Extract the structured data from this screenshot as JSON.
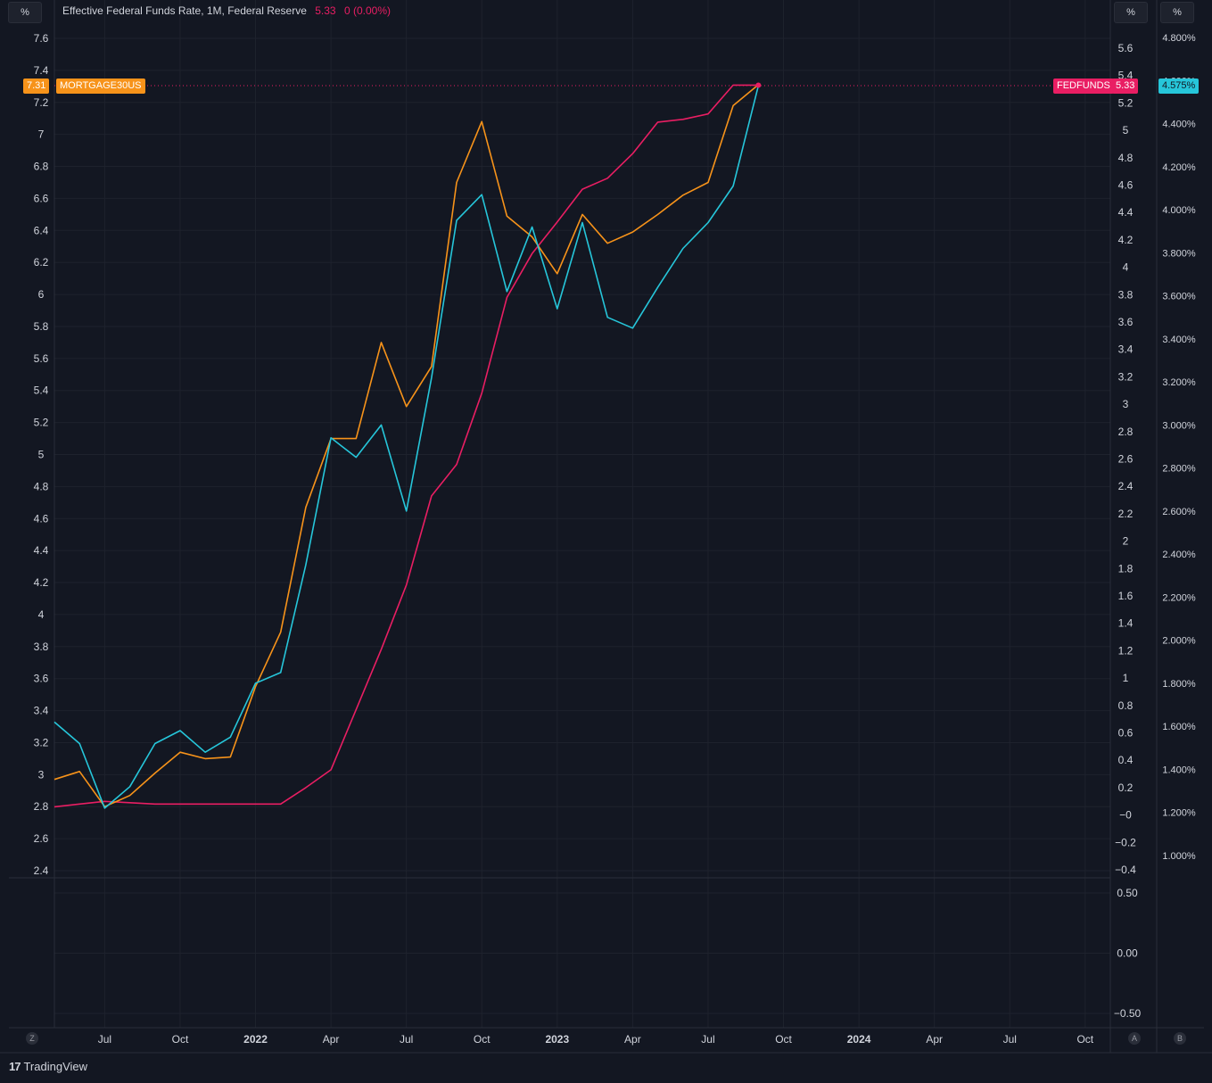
{
  "legend": {
    "title": "Effective Federal Funds Rate, 1M, Federal Reserve",
    "value": "5.33",
    "change": "0 (0.00%)"
  },
  "units": {
    "left": "%",
    "right1": "%",
    "right2": "%"
  },
  "buttons": {
    "z": "Z",
    "a": "A",
    "b": "B"
  },
  "labels": {
    "mortgage_value": "7.31",
    "mortgage_name": "MORTGAGE30US",
    "fedfunds_name": "FEDFUNDS",
    "fedfunds_value": "5.33",
    "third_value": "4.575%"
  },
  "brand": {
    "logo": "17",
    "name": "TradingView"
  },
  "colors": {
    "background": "#131722",
    "grid": "#2a2e39",
    "fedfunds": "#e91e63",
    "mortgage": "#f7931a",
    "third": "#26c6da"
  },
  "chart_data": {
    "type": "line",
    "x": [
      "2021-05",
      "2021-06",
      "2021-07",
      "2021-08",
      "2021-09",
      "2021-10",
      "2021-11",
      "2021-12",
      "2022-01",
      "2022-02",
      "2022-03",
      "2022-04",
      "2022-05",
      "2022-06",
      "2022-07",
      "2022-08",
      "2022-09",
      "2022-10",
      "2022-11",
      "2022-12",
      "2023-01",
      "2023-02",
      "2023-03",
      "2023-04",
      "2023-05",
      "2023-06",
      "2023-07",
      "2023-08",
      "2023-09"
    ],
    "x_range": [
      "2021-05",
      "2024-11"
    ],
    "x_ticks": [
      {
        "date": "2021-07",
        "label": "Jul",
        "bold": false
      },
      {
        "date": "2021-10",
        "label": "Oct",
        "bold": false
      },
      {
        "date": "2022-01",
        "label": "2022",
        "bold": true
      },
      {
        "date": "2022-04",
        "label": "Apr",
        "bold": false
      },
      {
        "date": "2022-07",
        "label": "Jul",
        "bold": false
      },
      {
        "date": "2022-10",
        "label": "Oct",
        "bold": false
      },
      {
        "date": "2023-01",
        "label": "2023",
        "bold": true
      },
      {
        "date": "2023-04",
        "label": "Apr",
        "bold": false
      },
      {
        "date": "2023-07",
        "label": "Jul",
        "bold": false
      },
      {
        "date": "2023-10",
        "label": "Oct",
        "bold": false
      },
      {
        "date": "2024-01",
        "label": "2024",
        "bold": true
      },
      {
        "date": "2024-04",
        "label": "Apr",
        "bold": false
      },
      {
        "date": "2024-07",
        "label": "Jul",
        "bold": false
      },
      {
        "date": "2024-10",
        "label": "Oct",
        "bold": false
      }
    ],
    "axes": {
      "left": {
        "range": [
          2.4,
          7.6
        ],
        "ticks": [
          "7.6",
          "7.4",
          "7.2",
          "7",
          "6.8",
          "6.6",
          "6.4",
          "6.2",
          "6",
          "5.8",
          "5.6",
          "5.4",
          "5.2",
          "5",
          "4.8",
          "4.6",
          "4.4",
          "4.2",
          "4",
          "3.8",
          "3.6",
          "3.4",
          "3.2",
          "3",
          "2.8",
          "2.6",
          "2.4"
        ]
      },
      "right1": {
        "range": [
          -0.4,
          5.6
        ],
        "ticks": [
          "5.6",
          "5.4",
          "5.2",
          "5",
          "4.8",
          "4.6",
          "4.4",
          "4.2",
          "4",
          "3.8",
          "3.6",
          "3.4",
          "3.2",
          "3",
          "2.8",
          "2.6",
          "2.4",
          "2.2",
          "2",
          "1.8",
          "1.6",
          "1.4",
          "1.2",
          "1",
          "0.8",
          "0.6",
          "0.4",
          "0.2",
          "−0",
          "−0.2",
          "−0.4"
        ]
      },
      "right2": {
        "range": [
          1.0,
          4.8
        ],
        "ticks": [
          "4.800%",
          "4.600%",
          "4.400%",
          "4.200%",
          "4.000%",
          "3.800%",
          "3.600%",
          "3.400%",
          "3.200%",
          "3.000%",
          "2.800%",
          "2.600%",
          "2.400%",
          "2.200%",
          "2.000%",
          "1.800%",
          "1.600%",
          "1.400%",
          "1.200%",
          "1.000%"
        ]
      },
      "lower": {
        "range": [
          -0.5,
          0.5
        ],
        "ticks": [
          "0.50",
          "0.00",
          "−0.50"
        ]
      }
    },
    "series": [
      {
        "name": "FEDFUNDS",
        "axis": "right1",
        "color": "#e91e63",
        "values": [
          0.06,
          0.08,
          0.1,
          0.09,
          0.08,
          0.08,
          0.08,
          0.08,
          0.08,
          0.08,
          0.2,
          0.33,
          0.77,
          1.21,
          1.68,
          2.33,
          2.56,
          3.08,
          3.78,
          4.1,
          4.33,
          4.57,
          4.65,
          4.83,
          5.06,
          5.08,
          5.12,
          5.33,
          5.33
        ]
      },
      {
        "name": "MORTGAGE30US",
        "axis": "left",
        "color": "#f7931a",
        "values": [
          2.97,
          3.02,
          2.8,
          2.87,
          3.01,
          3.14,
          3.1,
          3.11,
          3.55,
          3.89,
          4.67,
          5.1,
          5.1,
          5.7,
          5.3,
          5.55,
          6.7,
          7.08,
          6.49,
          6.36,
          6.13,
          6.5,
          6.32,
          6.39,
          6.5,
          6.62,
          6.7,
          7.18,
          7.31
        ]
      },
      {
        "axis": "right2",
        "color": "#26c6da",
        "values": [
          1.62,
          1.52,
          1.22,
          1.32,
          1.52,
          1.58,
          1.48,
          1.55,
          1.8,
          1.85,
          2.35,
          2.94,
          2.85,
          3.0,
          2.6,
          3.22,
          3.95,
          4.07,
          3.62,
          3.92,
          3.54,
          3.94,
          3.5,
          3.45,
          3.64,
          3.82,
          3.94,
          4.11,
          4.575
        ]
      }
    ]
  }
}
